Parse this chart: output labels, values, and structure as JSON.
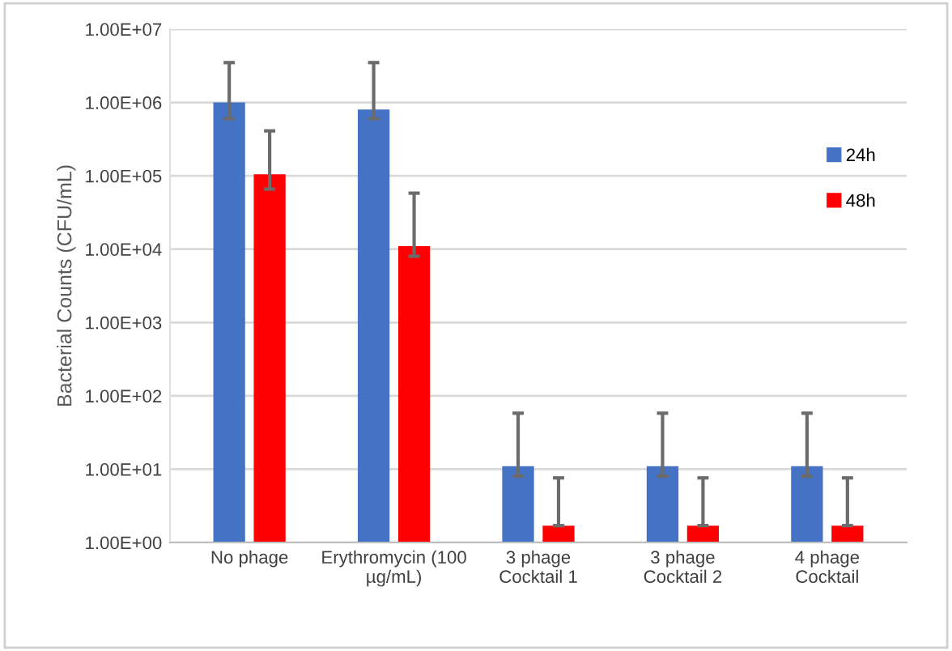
{
  "chart_data": {
    "type": "bar",
    "ylabel": "Bacterial Counts (CFU/mL)",
    "categories": [
      "No phage",
      "Erythromycin (100\nµg/mL)",
      "3 phage\nCocktail 1",
      "3 phage\nCocktail 2",
      "4 phage\nCocktail"
    ],
    "series": [
      {
        "name": "24h",
        "color": "#4472c4",
        "values": [
          1000000,
          800000,
          11,
          11,
          11
        ],
        "errors": [
          [
            600000,
            3500000
          ],
          [
            600000,
            3500000
          ],
          [
            8,
            58
          ],
          [
            8,
            58
          ],
          [
            8,
            58
          ]
        ]
      },
      {
        "name": "48h",
        "color": "#ff0000",
        "values": [
          105000,
          11000,
          1.7,
          1.7,
          1.7
        ],
        "errors": [
          [
            66000,
            410000
          ],
          [
            8000,
            58000
          ],
          [
            1.7,
            7.6
          ],
          [
            1.7,
            7.6
          ],
          [
            1.7,
            7.6
          ]
        ]
      }
    ],
    "log": "y",
    "ylim": [
      1,
      10000000
    ],
    "yticks": [
      {
        "value": 1,
        "label": "1.00E+00"
      },
      {
        "value": 10,
        "label": "1.00E+01"
      },
      {
        "value": 100,
        "label": "1.00E+02"
      },
      {
        "value": 1000,
        "label": "1.00E+03"
      },
      {
        "value": 10000,
        "label": "1.00E+04"
      },
      {
        "value": 100000,
        "label": "1.00E+05"
      },
      {
        "value": 1000000,
        "label": "1.00E+06"
      },
      {
        "value": 10000000,
        "label": "1.00E+07"
      }
    ],
    "grid": "y",
    "legend": "top right"
  }
}
